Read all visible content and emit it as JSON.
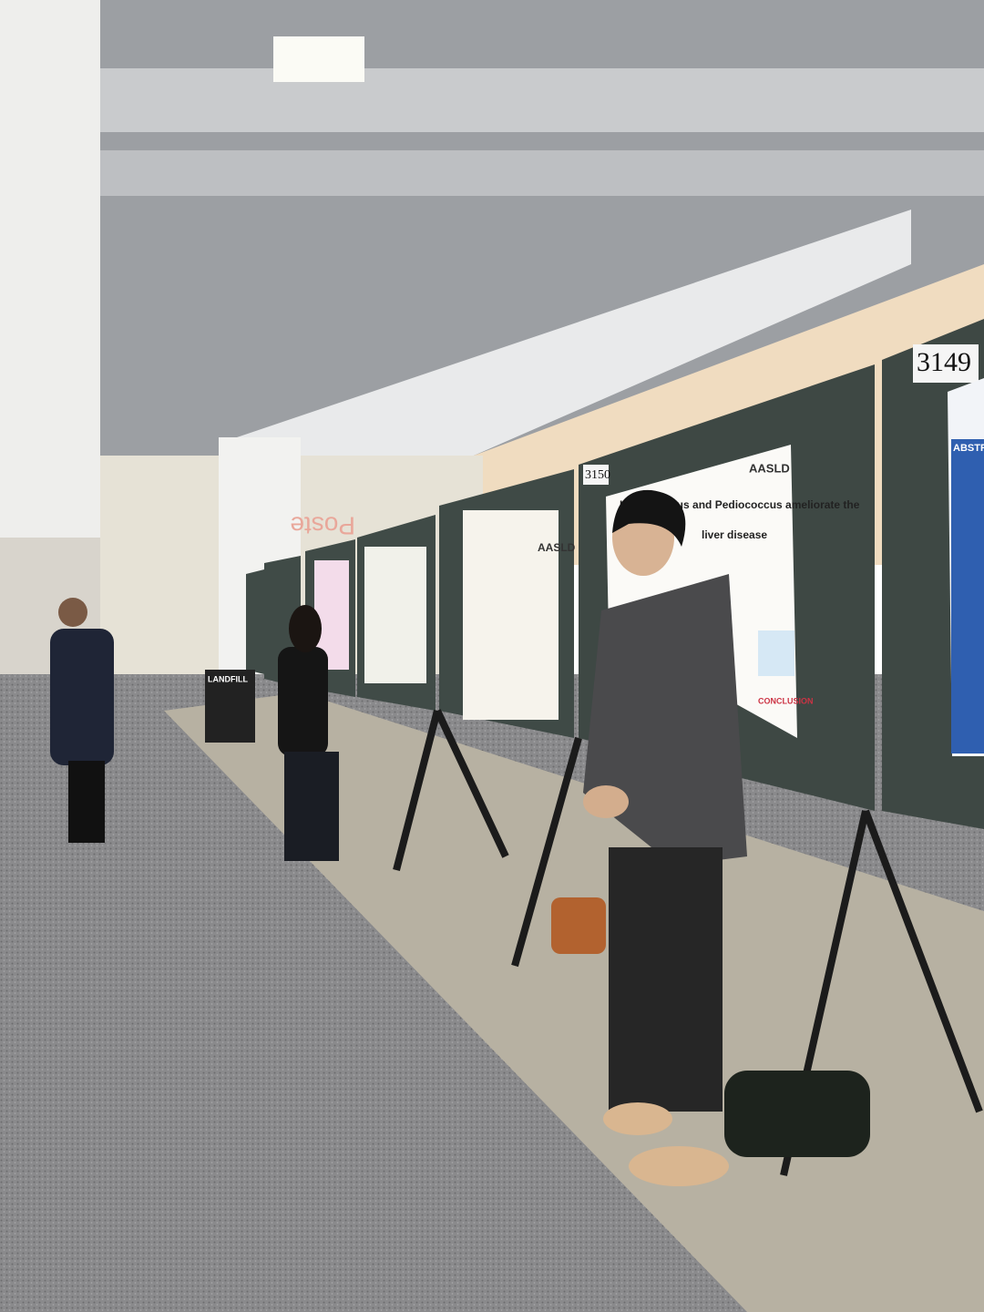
{
  "board_labels": [
    "3149",
    "3150"
  ],
  "posters": [
    {
      "title": "Lactobacillus and Pediococcus ameliorate the",
      "subtitle": "liver disease",
      "logo": "AASLD",
      "section": "CONCLUSION"
    },
    {
      "logo": "AASLD"
    },
    {
      "section": "ABSTRAC"
    }
  ],
  "bin_label": "LANDFILL",
  "wall_sign": "Poste"
}
